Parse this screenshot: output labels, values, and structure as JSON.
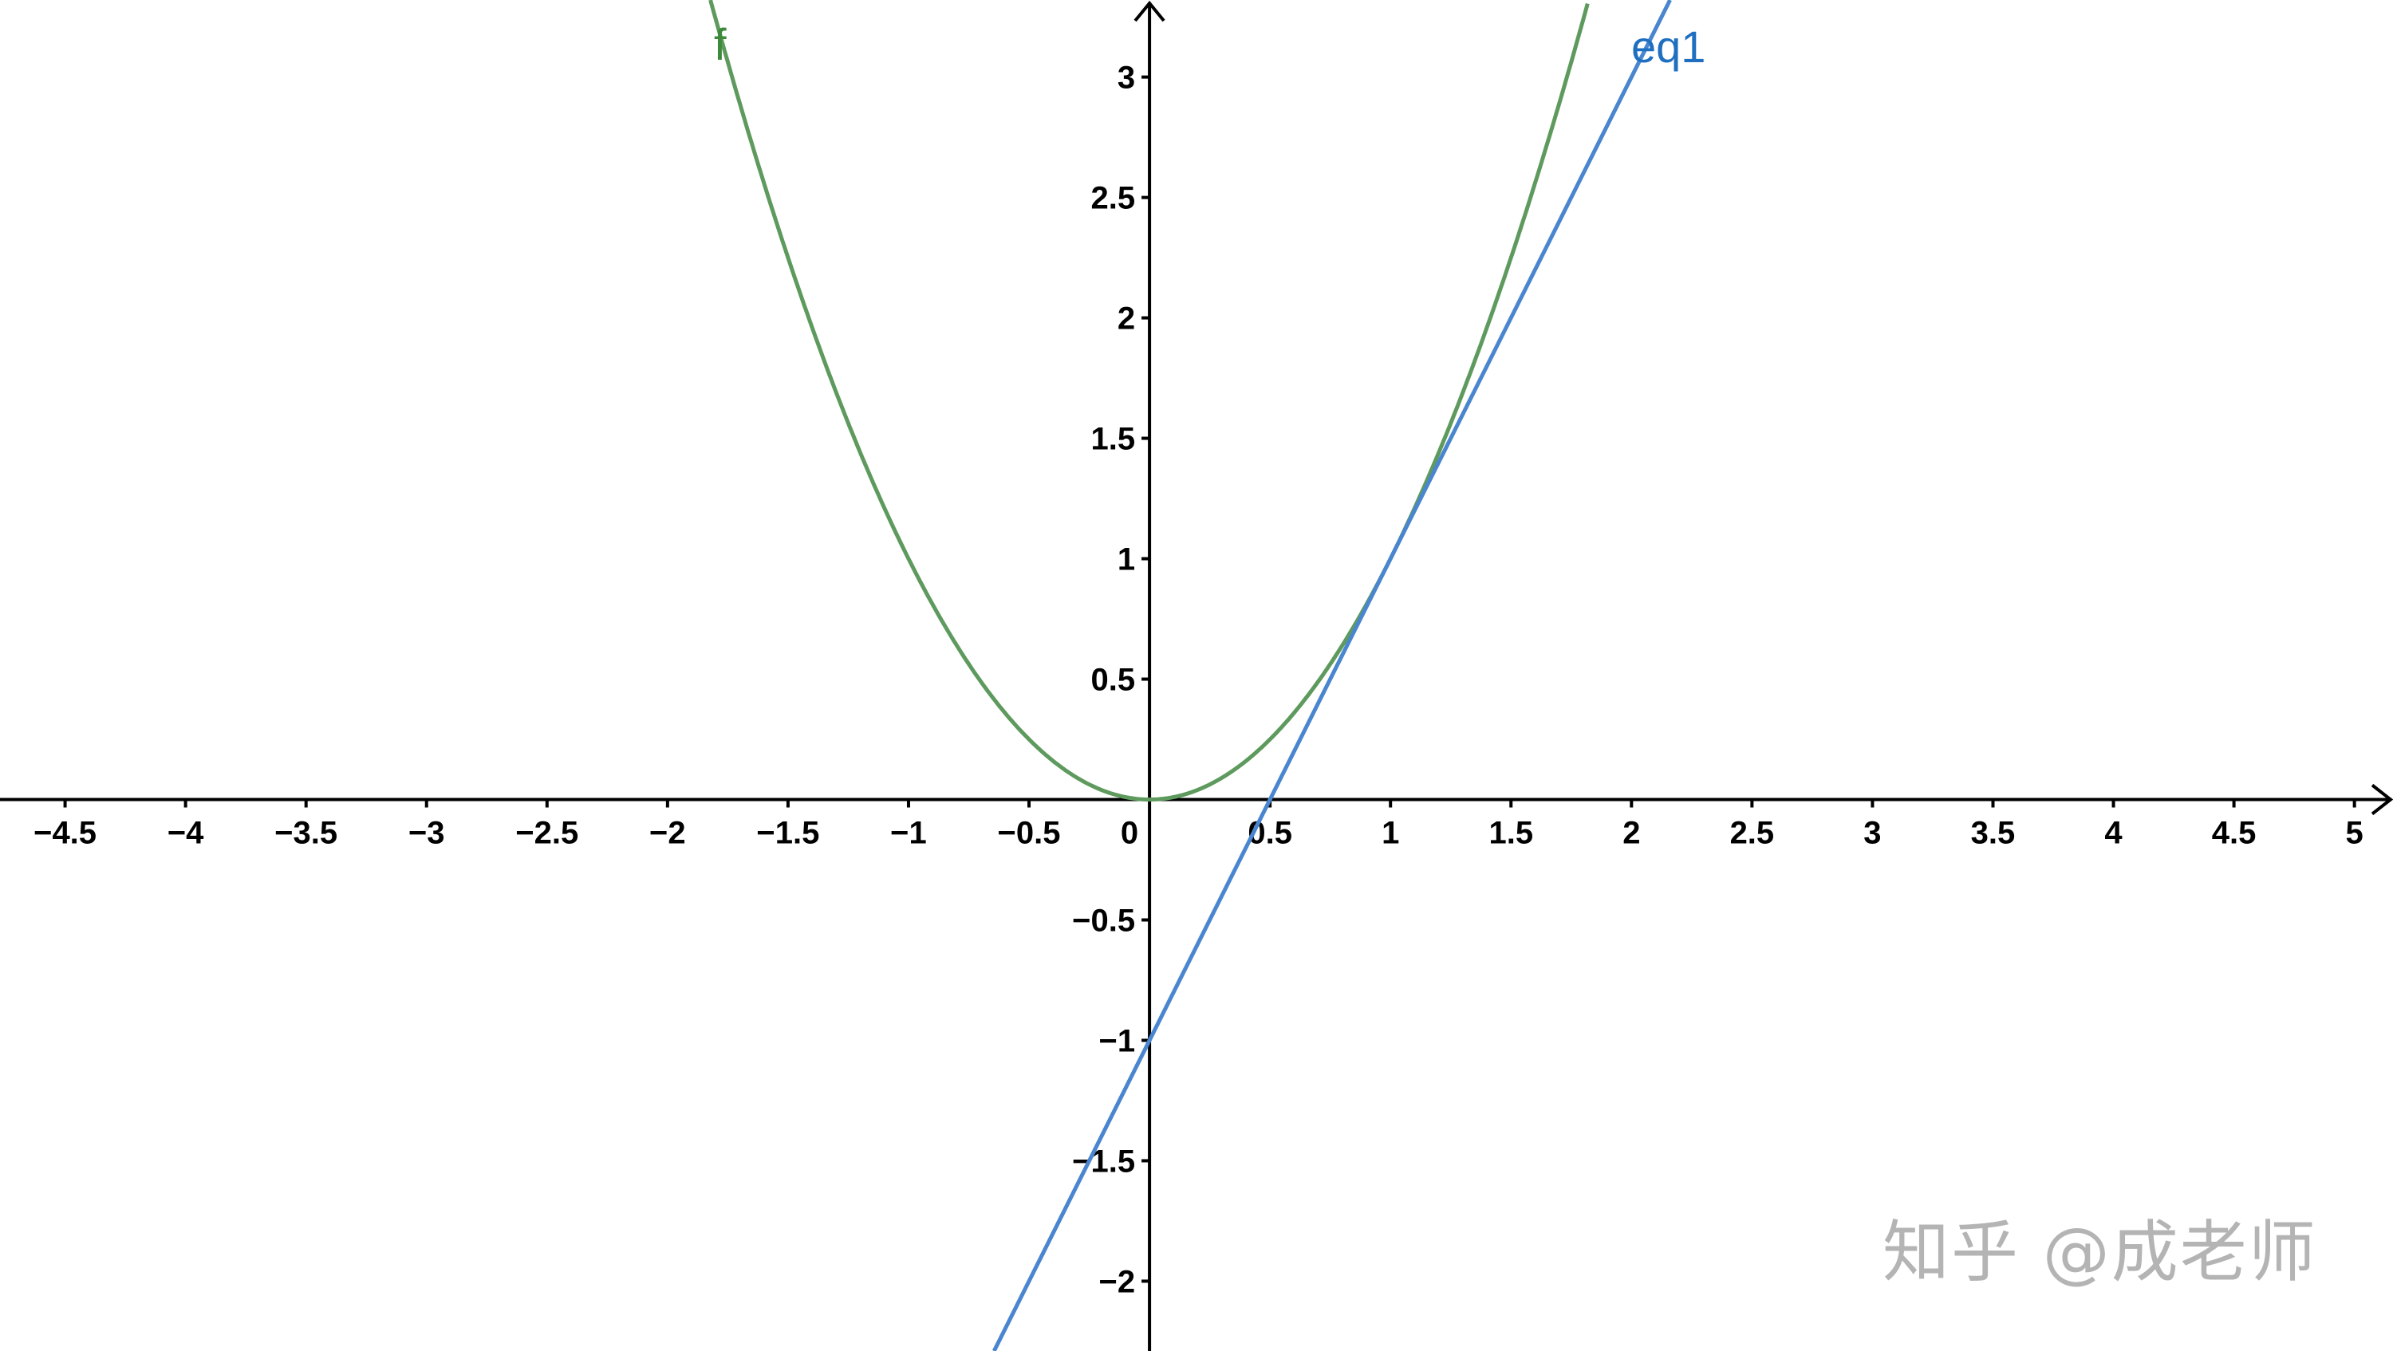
{
  "chart_data": {
    "type": "line",
    "xlim": [
      -4.77,
      5.16
    ],
    "ylim": [
      -2.29,
      3.32
    ],
    "grid": false,
    "x_ticks": [
      -4.5,
      -4,
      -3.5,
      -3,
      -2.5,
      -2,
      -1.5,
      -1,
      -0.5,
      0,
      0.5,
      1,
      1.5,
      2,
      2.5,
      3,
      3.5,
      4,
      4.5,
      5
    ],
    "x_tick_labels": [
      "−4.5",
      "−4",
      "−3.5",
      "−3",
      "−2.5",
      "−2",
      "−1.5",
      "−1",
      "−0.5",
      "0",
      "0.5",
      "1",
      "1.5",
      "2",
      "2.5",
      "3",
      "3.5",
      "4",
      "4.5",
      "5"
    ],
    "y_ticks": [
      -2,
      -1.5,
      -1,
      -0.5,
      0.5,
      1,
      1.5,
      2,
      2.5,
      3
    ],
    "y_tick_labels": [
      "−2",
      "−1.5",
      "−1",
      "−0.5",
      "0.5",
      "1",
      "1.5",
      "2",
      "2.5",
      "3"
    ],
    "series": [
      {
        "name": "f",
        "expression": "x^2",
        "color": "#5e9a5e",
        "label_color": "#3d8a3d"
      },
      {
        "name": "eq1",
        "expression": "2x - 1",
        "color": "#4a86cf",
        "label_color": "#1f6fc0"
      }
    ]
  },
  "watermark": "知乎 @成老师"
}
